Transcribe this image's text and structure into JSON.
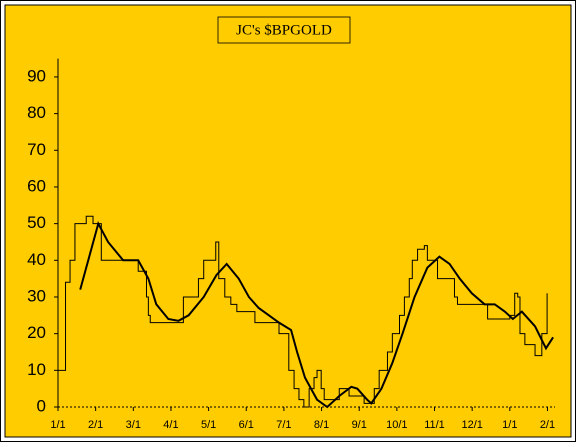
{
  "chart_data": {
    "type": "line",
    "title": "JC's $BPGOLD",
    "xlim": [
      0,
      13.2
    ],
    "xticks": [
      {
        "value": 0,
        "label": "1/1"
      },
      {
        "value": 1,
        "label": "2/1"
      },
      {
        "value": 2,
        "label": "3/1"
      },
      {
        "value": 3,
        "label": "4/1"
      },
      {
        "value": 4,
        "label": "5/1"
      },
      {
        "value": 5,
        "label": "6/1"
      },
      {
        "value": 6,
        "label": "7/1"
      },
      {
        "value": 7,
        "label": "8/1"
      },
      {
        "value": 8,
        "label": "9/1"
      },
      {
        "value": 9,
        "label": "10/1"
      },
      {
        "value": 10,
        "label": "11/1"
      },
      {
        "value": 11,
        "label": "12/1"
      },
      {
        "value": 12,
        "label": "1/1"
      },
      {
        "value": 13,
        "label": "2/1"
      }
    ],
    "ylim": [
      0,
      95
    ],
    "yticks": [
      0,
      10,
      20,
      30,
      40,
      50,
      60,
      70,
      80,
      90
    ],
    "grid": false,
    "background": "#ffcc00",
    "series": [
      {
        "color": "#000000",
        "width": 1,
        "step": true,
        "x": [
          0,
          0.2,
          0.32,
          0.45,
          0.75,
          0.93,
          1.15,
          2.13,
          2.35,
          2.4,
          2.45,
          3.33,
          3.73,
          3.87,
          4.19,
          4.27,
          4.43,
          4.59,
          4.75,
          5.23,
          5.87,
          6.13,
          6.27,
          6.4,
          6.53,
          6.67,
          6.8,
          6.88,
          6.99,
          7.07,
          7.47,
          7.73,
          8.13,
          8.4,
          8.53,
          8.75,
          8.88,
          9.07,
          9.2,
          9.33,
          9.41,
          9.55,
          9.73,
          9.81,
          10.08,
          10.53,
          10.61,
          11.41,
          12.0,
          12.13,
          12.21,
          12.27,
          12.4,
          12.67,
          12.85,
          12.99
        ],
        "values": [
          10,
          34,
          40,
          50,
          52,
          50,
          40,
          37,
          30,
          25,
          23,
          30,
          35,
          40,
          45,
          35,
          30,
          28,
          26,
          23,
          20,
          10,
          5,
          2,
          0,
          5,
          8,
          10,
          5,
          2,
          5,
          3,
          1,
          5,
          10,
          15,
          20,
          25,
          30,
          35,
          40,
          43,
          44,
          40,
          35,
          30,
          28,
          24,
          25,
          31,
          30,
          20,
          17,
          14,
          20,
          31
        ]
      },
      {
        "color": "#000000",
        "width": 2,
        "step": false,
        "x": [
          0.59,
          1.07,
          1.33,
          1.73,
          2.13,
          2.4,
          2.61,
          2.93,
          3.2,
          3.47,
          3.87,
          4.21,
          4.48,
          4.8,
          5.07,
          5.33,
          5.6,
          5.87,
          6.19,
          6.35,
          6.56,
          6.88,
          7.15,
          7.47,
          7.79,
          7.95,
          8.21,
          8.32,
          8.59,
          8.88,
          9.15,
          9.47,
          9.81,
          10.13,
          10.4,
          10.67,
          10.99,
          11.33,
          11.6,
          11.87,
          12.08,
          12.32,
          12.67,
          12.96,
          13.15
        ],
        "values": [
          32,
          50,
          45,
          40,
          40,
          35,
          28,
          24,
          23.5,
          25,
          30,
          36,
          39,
          35,
          30,
          27,
          25,
          23,
          21,
          15,
          8,
          2,
          0,
          3,
          5.5,
          5,
          2,
          1,
          5,
          12,
          20,
          30,
          38,
          41,
          39,
          35,
          31,
          28,
          28,
          26,
          24,
          26,
          22,
          16,
          19
        ]
      }
    ]
  }
}
